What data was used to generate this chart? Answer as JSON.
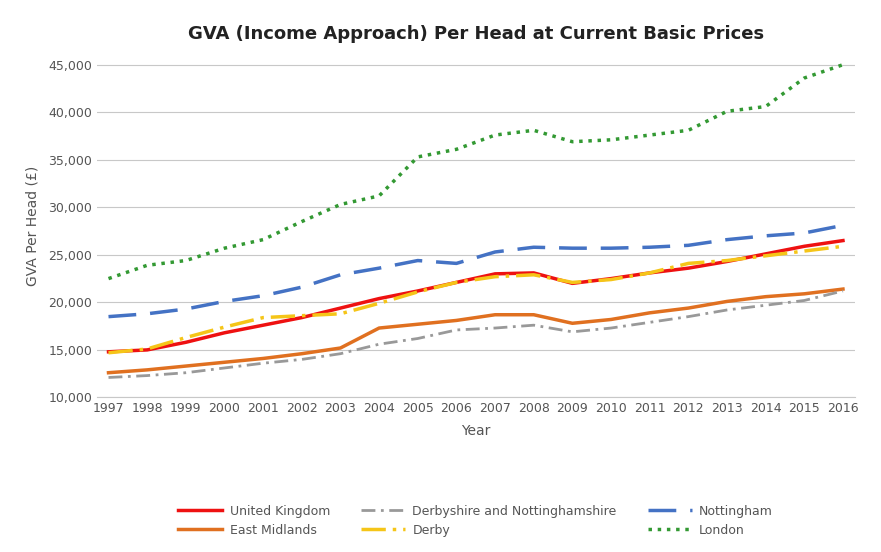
{
  "title": "GVA (Income Approach) Per Head at Current Basic Prices",
  "xlabel": "Year",
  "ylabel": "GVA Per Head (£)",
  "years": [
    1997,
    1998,
    1999,
    2000,
    2001,
    2002,
    2003,
    2004,
    2005,
    2006,
    2007,
    2008,
    2009,
    2010,
    2011,
    2012,
    2013,
    2014,
    2015,
    2016
  ],
  "series": {
    "United Kingdom": {
      "values": [
        14800,
        15000,
        15800,
        16800,
        17600,
        18400,
        19400,
        20400,
        21200,
        22100,
        23000,
        23100,
        22000,
        22500,
        23100,
        23600,
        24300,
        25100,
        25900,
        26500
      ],
      "color": "#EE1111",
      "linestyle": "solid",
      "linewidth": 2.5
    },
    "East Midlands": {
      "values": [
        12600,
        12900,
        13300,
        13700,
        14100,
        14600,
        15200,
        17300,
        17700,
        18100,
        18700,
        18700,
        17800,
        18200,
        18900,
        19400,
        20100,
        20600,
        20900,
        21400
      ],
      "color": "#E07020",
      "linestyle": "solid",
      "linewidth": 2.5
    },
    "Derbyshire and Nottinghamshire": {
      "values": [
        12100,
        12300,
        12600,
        13100,
        13600,
        14000,
        14600,
        15600,
        16200,
        17100,
        17300,
        17600,
        16900,
        17300,
        17900,
        18500,
        19200,
        19700,
        20200,
        21200
      ],
      "color": "#999999",
      "linestyle": "dashdot",
      "linewidth": 2.0
    },
    "Derby": {
      "values": [
        14700,
        15100,
        16300,
        17400,
        18400,
        18600,
        18800,
        19900,
        21100,
        22100,
        22700,
        22900,
        22100,
        22400,
        23100,
        24100,
        24400,
        24900,
        25400,
        25900
      ],
      "color": "#F5C518",
      "linestyle": "dashdot",
      "linewidth": 2.5
    },
    "Nottingham": {
      "values": [
        18500,
        18800,
        19300,
        20100,
        20700,
        21600,
        22900,
        23600,
        24400,
        24100,
        25300,
        25800,
        25700,
        25700,
        25800,
        26000,
        26600,
        27000,
        27300,
        28100
      ],
      "color": "#4472C4",
      "linestyle": "dashed",
      "linewidth": 2.5
    },
    "London": {
      "values": [
        22500,
        23900,
        24400,
        25700,
        26600,
        28500,
        30300,
        31200,
        35300,
        36100,
        37600,
        38100,
        36900,
        37100,
        37600,
        38100,
        40100,
        40600,
        43600,
        45000
      ],
      "color": "#339933",
      "linestyle": "dotted",
      "linewidth": 2.5
    }
  },
  "ylim": [
    10000,
    46000
  ],
  "yticks": [
    10000,
    15000,
    20000,
    25000,
    30000,
    35000,
    40000,
    45000
  ],
  "legend_order": [
    "United Kingdom",
    "East Midlands",
    "Derbyshire and Nottinghamshire",
    "Derby",
    "Nottingham",
    "London"
  ],
  "background_color": "#FFFFFF",
  "grid_color": "#C8C8C8",
  "tick_color": "#555555",
  "label_color": "#555555"
}
